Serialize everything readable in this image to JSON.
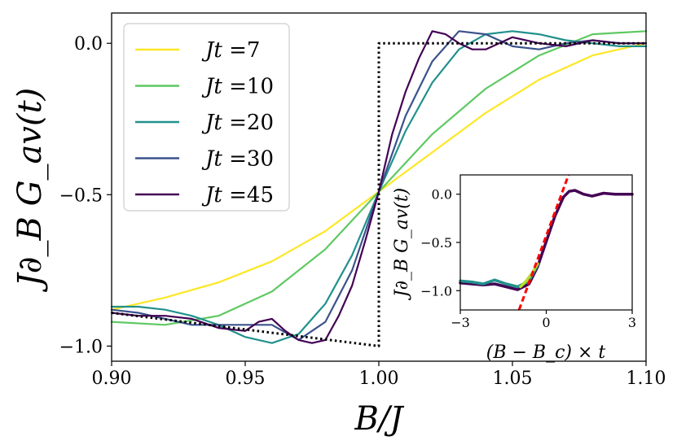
{
  "chart_data": [
    {
      "type": "line",
      "title": "",
      "xlabel": "B/J",
      "ylabel": "J∂_B G_av(t)",
      "xlim": [
        0.9,
        1.1
      ],
      "ylim": [
        -1.05,
        0.1
      ],
      "xticks": [
        0.9,
        0.95,
        1.0,
        1.05,
        1.1
      ],
      "xtick_labels": [
        "0.90",
        "0.95",
        "1.00",
        "1.05",
        "1.10"
      ],
      "yticks": [
        0.0,
        -0.5,
        -1.0
      ],
      "ytick_labels": [
        "0.0",
        "−0.5",
        "−1.0"
      ],
      "legend_position": "top-left",
      "series": [
        {
          "name": "Jt =7",
          "label_prefix": "Jt =",
          "label_value": "7",
          "color": "#fde725",
          "x": [
            0.9,
            0.92,
            0.94,
            0.96,
            0.98,
            1.0,
            1.02,
            1.04,
            1.06,
            1.08,
            1.1
          ],
          "y": [
            -0.88,
            -0.84,
            -0.79,
            -0.72,
            -0.62,
            -0.49,
            -0.36,
            -0.23,
            -0.12,
            -0.04,
            0.0
          ]
        },
        {
          "name": "Jt =10",
          "label_prefix": "Jt =",
          "label_value": "10",
          "color": "#5ec962",
          "x": [
            0.9,
            0.92,
            0.94,
            0.96,
            0.98,
            1.0,
            1.02,
            1.04,
            1.06,
            1.08,
            1.1
          ],
          "y": [
            -0.92,
            -0.93,
            -0.9,
            -0.82,
            -0.68,
            -0.49,
            -0.3,
            -0.15,
            -0.04,
            0.03,
            0.04
          ]
        },
        {
          "name": "Jt =20",
          "label_prefix": "Jt =",
          "label_value": "20",
          "color": "#21918c",
          "x": [
            0.9,
            0.91,
            0.92,
            0.93,
            0.94,
            0.95,
            0.96,
            0.97,
            0.98,
            0.99,
            1.0,
            1.01,
            1.02,
            1.03,
            1.04,
            1.05,
            1.06,
            1.07,
            1.08,
            1.09,
            1.1
          ],
          "y": [
            -0.87,
            -0.87,
            -0.88,
            -0.9,
            -0.93,
            -0.97,
            -0.99,
            -0.96,
            -0.86,
            -0.7,
            -0.49,
            -0.29,
            -0.13,
            -0.02,
            0.03,
            0.04,
            0.03,
            0.01,
            0.0,
            -0.01,
            -0.01
          ]
        },
        {
          "name": "Jt =30",
          "label_prefix": "Jt =",
          "label_value": "30",
          "color": "#3b528b",
          "x": [
            0.9,
            0.91,
            0.92,
            0.93,
            0.94,
            0.95,
            0.96,
            0.97,
            0.98,
            0.99,
            1.0,
            1.01,
            1.02,
            1.03,
            1.04,
            1.05,
            1.06,
            1.07,
            1.08,
            1.09,
            1.1
          ],
          "y": [
            -0.88,
            -0.89,
            -0.91,
            -0.93,
            -0.93,
            -0.93,
            -0.93,
            -0.98,
            -0.92,
            -0.75,
            -0.49,
            -0.24,
            -0.06,
            0.04,
            0.03,
            -0.01,
            -0.02,
            0.0,
            0.01,
            0.0,
            0.0
          ]
        },
        {
          "name": "Jt =45",
          "label_prefix": "Jt =",
          "label_value": "45",
          "color": "#440154",
          "x": [
            0.9,
            0.91,
            0.92,
            0.93,
            0.94,
            0.95,
            0.955,
            0.96,
            0.965,
            0.97,
            0.975,
            0.98,
            0.985,
            0.99,
            0.995,
            1.0,
            1.005,
            1.01,
            1.015,
            1.02,
            1.025,
            1.03,
            1.035,
            1.04,
            1.05,
            1.06,
            1.07,
            1.08,
            1.09,
            1.1
          ],
          "y": [
            -0.89,
            -0.9,
            -0.9,
            -0.91,
            -0.94,
            -0.95,
            -0.92,
            -0.91,
            -0.95,
            -0.98,
            -0.99,
            -0.98,
            -0.9,
            -0.8,
            -0.65,
            -0.49,
            -0.3,
            -0.16,
            -0.05,
            0.04,
            0.03,
            0.0,
            -0.02,
            -0.02,
            0.02,
            0.0,
            -0.01,
            0.01,
            0.0,
            0.0
          ]
        },
        {
          "name": "step",
          "color": "#000000",
          "dashed": true,
          "legend": false,
          "x": [
            0.9,
            1.0,
            1.0,
            1.1
          ],
          "y": [
            -0.89,
            -1.0,
            0.0,
            0.0
          ]
        }
      ]
    },
    {
      "type": "line",
      "title": "",
      "xlabel": "(B − B_c) × t",
      "ylabel": "J∂_B G_av(t)",
      "xlim": [
        -3,
        3
      ],
      "ylim": [
        -1.2,
        0.2
      ],
      "xticks": [
        -3,
        0,
        3
      ],
      "xtick_labels": [
        "−3",
        "0",
        "3"
      ],
      "yticks": [
        0.0,
        -0.5,
        -1.0
      ],
      "ytick_labels": [
        "0.0",
        "−0.5",
        "−1.0"
      ],
      "series": [
        {
          "name": "collapse",
          "color": "#440154",
          "x": [
            -3.0,
            -2.6,
            -2.2,
            -1.8,
            -1.4,
            -1.0,
            -0.6,
            -0.3,
            0.0,
            0.3,
            0.6,
            0.8,
            1.0,
            1.3,
            1.6,
            2.0,
            2.4,
            2.8,
            3.0
          ],
          "y": [
            -0.92,
            -0.93,
            -0.94,
            -0.93,
            -0.96,
            -0.99,
            -0.93,
            -0.75,
            -0.49,
            -0.23,
            -0.03,
            0.03,
            0.04,
            0.0,
            -0.02,
            0.01,
            0.0,
            0.0,
            0.0
          ]
        },
        {
          "name": "collapse-small-t",
          "color": "#21918c",
          "x": [
            -3.0,
            -2.6,
            -2.2,
            -1.8,
            -1.4,
            -1.0,
            -0.6,
            -0.3
          ],
          "y": [
            -0.9,
            -0.91,
            -0.93,
            -0.89,
            -0.93,
            -0.96,
            -0.9,
            -0.73
          ]
        },
        {
          "name": "collapse-yellow",
          "color": "#b5de2b",
          "x": [
            -0.9,
            -0.7,
            -0.5,
            -0.3
          ],
          "y": [
            -0.96,
            -0.9,
            -0.82,
            -0.72
          ]
        },
        {
          "name": "linear-fit",
          "color": "#ff0000",
          "dashed": true,
          "x": [
            -0.95,
            0.78
          ],
          "y": [
            -1.2,
            0.2
          ]
        }
      ]
    }
  ]
}
